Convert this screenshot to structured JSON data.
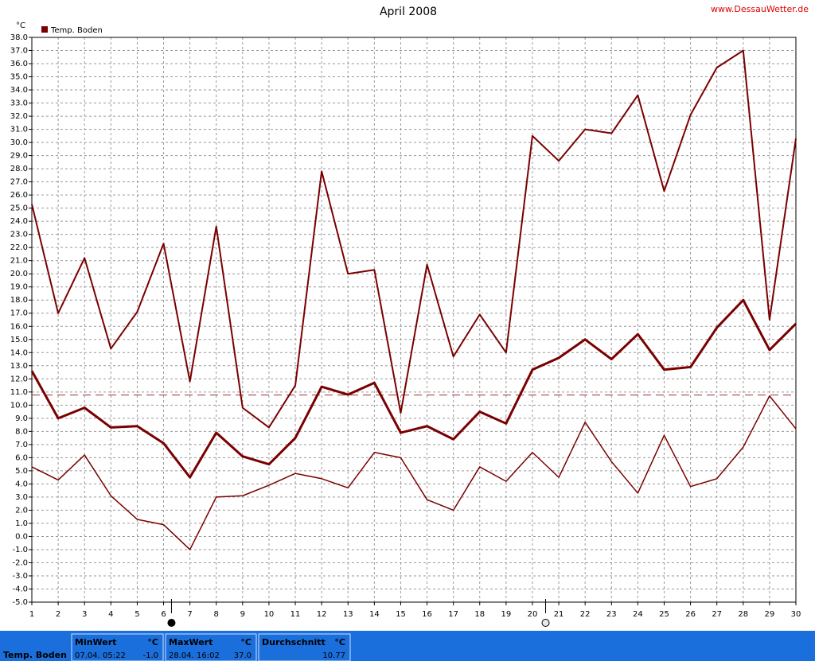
{
  "chart_data": {
    "type": "line",
    "title": "April 2008",
    "watermark": "www.DessauWetter.de",
    "y_unit": "°C",
    "legend": {
      "label": "Temp. Boden",
      "color": "#7a0000"
    },
    "x": [
      1,
      2,
      3,
      4,
      5,
      6,
      7,
      8,
      9,
      10,
      11,
      12,
      13,
      14,
      15,
      16,
      17,
      18,
      19,
      20,
      21,
      22,
      23,
      24,
      25,
      26,
      27,
      28,
      29,
      30
    ],
    "xlim": [
      1,
      30
    ],
    "xticks": [
      1,
      2,
      3,
      4,
      5,
      6,
      7,
      8,
      9,
      10,
      11,
      12,
      13,
      14,
      15,
      16,
      17,
      18,
      19,
      20,
      21,
      22,
      23,
      24,
      25,
      26,
      27,
      28,
      29,
      30
    ],
    "ylim": [
      -5,
      38
    ],
    "yticks": [
      {
        "value": -5,
        "label": "-5.0"
      },
      {
        "value": -4,
        "label": "-4.0"
      },
      {
        "value": -3,
        "label": "-3.0"
      },
      {
        "value": -2,
        "label": "-2.0"
      },
      {
        "value": -1,
        "label": "-1.0"
      },
      {
        "value": 0,
        "label": "0.0"
      },
      {
        "value": 1,
        "label": "1.0"
      },
      {
        "value": 2,
        "label": "2.0"
      },
      {
        "value": 3,
        "label": "3.0"
      },
      {
        "value": 4,
        "label": "4.0"
      },
      {
        "value": 5,
        "label": "5.0"
      },
      {
        "value": 6,
        "label": "6.0"
      },
      {
        "value": 7,
        "label": "7.0"
      },
      {
        "value": 8,
        "label": "8.0"
      },
      {
        "value": 9,
        "label": "9.0"
      },
      {
        "value": 10,
        "label": "10.0"
      },
      {
        "value": 11,
        "label": "11.0"
      },
      {
        "value": 12,
        "label": "12.0"
      },
      {
        "value": 13,
        "label": "13.0"
      },
      {
        "value": 14,
        "label": "14.0"
      },
      {
        "value": 15,
        "label": "15.0"
      },
      {
        "value": 16,
        "label": "16.0"
      },
      {
        "value": 17,
        "label": "17.0"
      },
      {
        "value": 18,
        "label": "18.0"
      },
      {
        "value": 19,
        "label": "19.0"
      },
      {
        "value": 20,
        "label": "20.0"
      },
      {
        "value": 21,
        "label": "21.0"
      },
      {
        "value": 22,
        "label": "22.0"
      },
      {
        "value": 23,
        "label": "23.0"
      },
      {
        "value": 24,
        "label": "24.0"
      },
      {
        "value": 25,
        "label": "25.0"
      },
      {
        "value": 26,
        "label": "26.0"
      },
      {
        "value": 27,
        "label": "27.0"
      },
      {
        "value": 28,
        "label": "28.0"
      },
      {
        "value": 29,
        "label": "29.0"
      },
      {
        "value": 30,
        "label": "30.0"
      },
      {
        "value": 31,
        "label": "31.0"
      },
      {
        "value": 32,
        "label": "32.0"
      },
      {
        "value": 33,
        "label": "33.0"
      },
      {
        "value": 34,
        "label": "34.0"
      },
      {
        "value": 35,
        "label": "35.0"
      },
      {
        "value": 36,
        "label": "36.0"
      },
      {
        "value": 37,
        "label": "37.0"
      },
      {
        "value": 38,
        "label": "38.0"
      }
    ],
    "grid": true,
    "series": [
      {
        "color": "#7a0000",
        "width": 2,
        "values": [
          25.3,
          17.0,
          21.2,
          14.3,
          17.1,
          22.3,
          11.8,
          23.6,
          9.8,
          8.3,
          11.5,
          27.8,
          20.0,
          20.3,
          9.4,
          20.7,
          13.7,
          16.9,
          14.0,
          30.5,
          28.6,
          31.0,
          30.7,
          33.6,
          26.3,
          32.1,
          35.7,
          37.0,
          16.5,
          30.3
        ]
      },
      {
        "color": "#7a0000",
        "width": 3,
        "values": [
          12.6,
          9.0,
          9.8,
          8.3,
          8.4,
          7.1,
          4.5,
          7.9,
          6.1,
          5.5,
          7.5,
          11.4,
          10.8,
          11.7,
          7.9,
          8.4,
          7.4,
          9.5,
          8.6,
          12.7,
          13.6,
          15.0,
          13.5,
          15.4,
          12.7,
          12.9,
          15.9,
          18.0,
          14.2,
          16.2
        ]
      },
      {
        "color": "#7a0000",
        "width": 1.5,
        "values": [
          5.3,
          4.3,
          6.2,
          3.1,
          1.3,
          0.9,
          -1.0,
          3.0,
          3.1,
          3.9,
          4.8,
          4.4,
          3.7,
          6.4,
          6.0,
          2.8,
          2.0,
          5.3,
          4.2,
          6.4,
          4.5,
          8.7,
          5.7,
          3.3,
          7.7,
          3.8,
          4.4,
          6.8,
          10.7,
          8.2
        ]
      }
    ],
    "average_line": {
      "value": 10.77,
      "color": "#a03030"
    },
    "moon_phases": [
      {
        "x": 6.3,
        "phase": "new"
      },
      {
        "x": 20.5,
        "phase": "full"
      }
    ]
  },
  "summary": {
    "label": "Temp. Boden",
    "columns": [
      {
        "header": "MinWert",
        "unit": "°C",
        "time": "07.04. 05:22",
        "value": "-1.0"
      },
      {
        "header": "MaxWert",
        "unit": "°C",
        "time": "28.04. 16:02",
        "value": "37.0"
      },
      {
        "header": "Durchschnitt",
        "unit": "°C",
        "value": "10.77"
      }
    ]
  }
}
